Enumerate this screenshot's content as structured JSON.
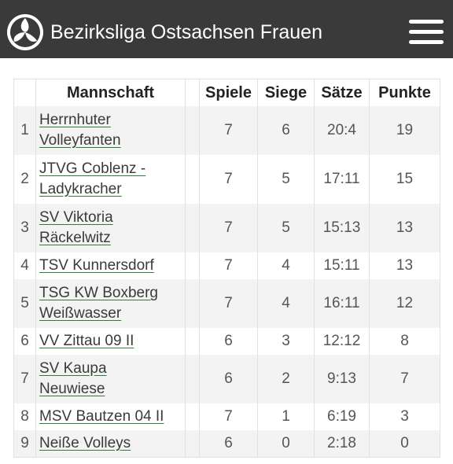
{
  "header": {
    "title": "Bezirksliga Ostsachsen Frauen",
    "logo_icon": "volleyball-icon",
    "menu_icon": "hamburger-menu-icon"
  },
  "table": {
    "columns": [
      "",
      "Mannschaft",
      "",
      "Spiele",
      "Siege",
      "Sätze",
      "Punkte"
    ],
    "rows": [
      {
        "rank": "1",
        "team_line1": "Herrnhuter",
        "team_line2": "Volleyfanten",
        "spiele": "7",
        "siege": "6",
        "saetze": "20:4",
        "punkte": "19"
      },
      {
        "rank": "2",
        "team_line1": "JTVG Coblenz -",
        "team_line2": "Ladykracher",
        "spiele": "7",
        "siege": "5",
        "saetze": "17:11",
        "punkte": "15"
      },
      {
        "rank": "3",
        "team_line1": "SV Viktoria",
        "team_line2": "Räckelwitz",
        "spiele": "7",
        "siege": "5",
        "saetze": "15:13",
        "punkte": "13"
      },
      {
        "rank": "4",
        "team_line1": "TSV Kunnersdorf",
        "team_line2": "",
        "spiele": "7",
        "siege": "4",
        "saetze": "15:11",
        "punkte": "13"
      },
      {
        "rank": "5",
        "team_line1": "TSG KW Boxberg",
        "team_line2": "Weißwasser",
        "spiele": "7",
        "siege": "4",
        "saetze": "16:11",
        "punkte": "12"
      },
      {
        "rank": "6",
        "team_line1": "VV Zittau 09 II",
        "team_line2": "",
        "spiele": "6",
        "siege": "3",
        "saetze": "12:12",
        "punkte": "8"
      },
      {
        "rank": "7",
        "team_line1": "SV Kaupa",
        "team_line2": "Neuwiese",
        "spiele": "6",
        "siege": "2",
        "saetze": "9:13",
        "punkte": "7"
      },
      {
        "rank": "8",
        "team_line1": "MSV Bautzen 04 II",
        "team_line2": "",
        "spiele": "7",
        "siege": "1",
        "saetze": "6:19",
        "punkte": "3"
      },
      {
        "rank": "9",
        "team_line1": "Neiße Volleys",
        "team_line2": "",
        "spiele": "6",
        "siege": "0",
        "saetze": "2:18",
        "punkte": "0"
      }
    ]
  }
}
